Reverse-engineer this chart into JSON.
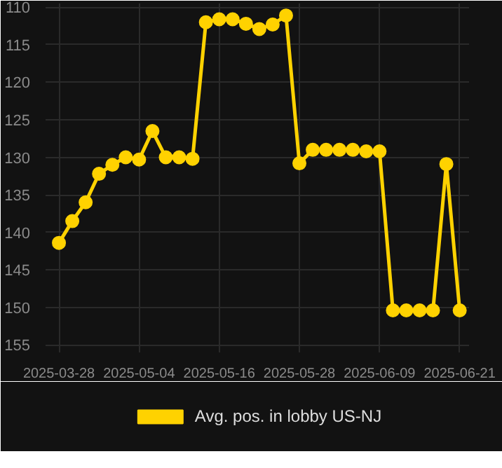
{
  "chart_data": {
    "type": "line",
    "categories": [
      "2025-03-28",
      null,
      null,
      null,
      null,
      null,
      "2025-05-04",
      null,
      null,
      null,
      null,
      null,
      "2025-05-16",
      null,
      null,
      null,
      null,
      null,
      "2025-05-28",
      null,
      null,
      null,
      null,
      null,
      "2025-06-09",
      null,
      null,
      null,
      null,
      null,
      "2025-06-21"
    ],
    "series": [
      {
        "name": "Avg. pos. in lobby US-NJ",
        "color": "#ffd200",
        "values": [
          141.4,
          138.5,
          136.0,
          132.2,
          131.0,
          130.0,
          130.3,
          126.5,
          130.0,
          130.0,
          130.2,
          112.0,
          111.6,
          111.6,
          112.2,
          112.9,
          112.3,
          111.1,
          130.8,
          129.0,
          129.0,
          129.0,
          129.0,
          129.2,
          129.2,
          150.4,
          150.4,
          150.4,
          150.4,
          130.9,
          150.4
        ]
      }
    ],
    "ylim": [
      156,
      109.5
    ],
    "yticks": [
      110,
      115,
      120,
      125,
      130,
      135,
      140,
      145,
      150,
      155
    ],
    "grid": true,
    "legend": "bottom",
    "marker": "circle",
    "line_style": "solid"
  }
}
